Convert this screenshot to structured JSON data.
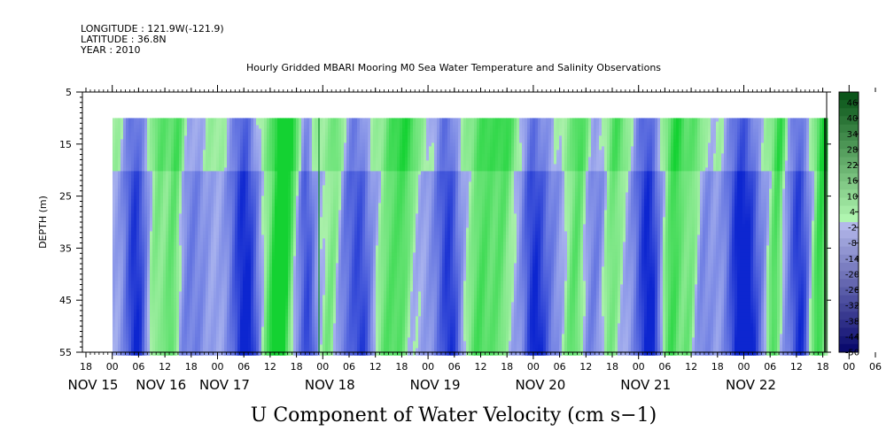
{
  "meta": {
    "longitude": "LONGITUDE : 121.9W(-121.9)",
    "latitude": "LATITUDE : 36.8N",
    "year": "YEAR : 2010"
  },
  "chart_data": {
    "type": "heatmap",
    "title": "Hourly Gridded MBARI Mooring M0 Sea Water Temperature and Salinity Observations",
    "variable_label": "U Component of Water Velocity (cm s−1)",
    "ylabel": "DEPTH (m)",
    "y_axis": {
      "range": [
        5,
        55
      ],
      "inverted": true,
      "ticks": [
        "5",
        "15",
        "25",
        "35",
        "45",
        "55"
      ]
    },
    "x_axis": {
      "hour_ticks": [
        "18",
        "00",
        "06",
        "12",
        "18",
        "00",
        "06",
        "12",
        "18",
        "00",
        "06",
        "12",
        "18",
        "00",
        "06",
        "12",
        "18",
        "00",
        "06",
        "12",
        "18",
        "00",
        "06",
        "12",
        "18",
        "00",
        "06",
        "12",
        "18",
        "00",
        "06",
        "12",
        "18"
      ],
      "date_labels": [
        "NOV 15",
        "NOV 16",
        "NOV 17",
        "NOV 18",
        "NOV 19",
        "NOV 20",
        "NOV 21",
        "NOV 22"
      ]
    },
    "colorbar_labels": [
      "46",
      "40",
      "34",
      "28",
      "22",
      "16",
      "10",
      "4",
      "-2",
      "-8",
      "-14",
      "-20",
      "-26",
      "-32",
      "-38",
      "-44",
      "-50"
    ],
    "data_extent": {
      "depth_start": 10,
      "depth_end": 55
    },
    "colors": {
      "negative_deep": "#0a24c8",
      "negative_light": "#a6b2ee",
      "positive_light": "#a6f0a6",
      "positive_strong": "#14d23c"
    }
  }
}
